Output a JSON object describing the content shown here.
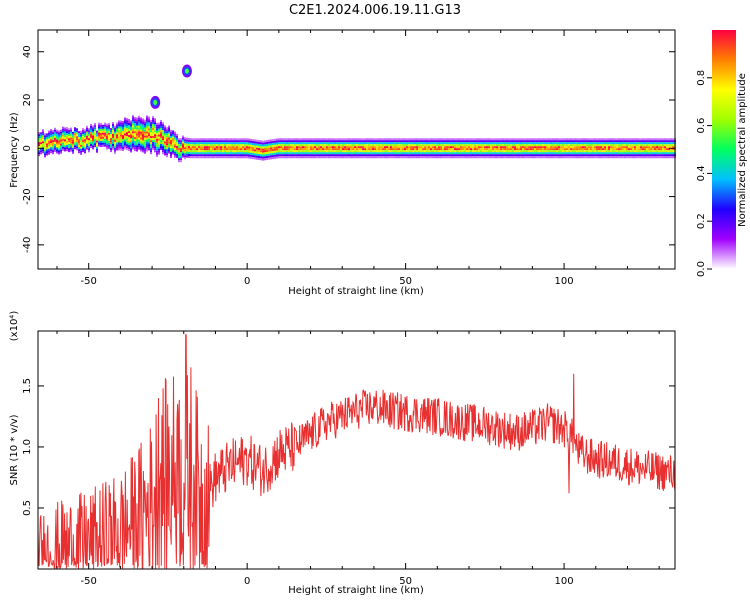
{
  "title": "C2E1.2024.006.19.11.G13",
  "chart_data": [
    {
      "type": "heatmap",
      "xlabel": "Height of straight line (km)",
      "ylabel": "Frequency (Hz)",
      "xlim": [
        -66,
        135
      ],
      "ylim": [
        -50,
        49
      ],
      "xticks": [
        -50,
        0,
        50,
        100
      ],
      "yticks": [
        -40,
        -20,
        0,
        20,
        40
      ],
      "xtick_labels": [
        "-50",
        "0",
        "50",
        "100"
      ],
      "ytick_labels": [
        "-40",
        "-20",
        "0",
        "20",
        "40"
      ],
      "colorbar": {
        "label": "Normalized spectral amplitude",
        "range": [
          0,
          1
        ],
        "ticks": [
          0.0,
          0.2,
          0.4,
          0.6,
          0.8
        ],
        "tick_labels": [
          "0.0",
          "0.2",
          "0.4",
          "0.6",
          "0.8"
        ],
        "colormap": [
          "#ffffff",
          "#a000ff",
          "#2000ff",
          "#00c0ff",
          "#00ff60",
          "#a0ff00",
          "#ffff00",
          "#ff8000",
          "#ff0040"
        ]
      },
      "ridge": {
        "height_km": [
          -66,
          -60,
          -55,
          -50,
          -45,
          -40,
          -35,
          -30,
          -25,
          -22,
          -18,
          -15,
          -10,
          -5,
          0,
          5,
          10,
          20,
          40,
          60,
          80,
          100,
          120,
          135
        ],
        "center_hz": [
          1,
          2,
          3,
          4,
          4,
          5,
          6,
          5,
          3,
          0,
          0,
          0,
          0,
          0,
          0,
          -1,
          0,
          0,
          0,
          0,
          0,
          0,
          0,
          0
        ],
        "half_width_hz": [
          4,
          4,
          4,
          4,
          4,
          5,
          6,
          6,
          5,
          4,
          3,
          3,
          3,
          3,
          3,
          3,
          3,
          3,
          3,
          3,
          3,
          3,
          3,
          3
        ]
      },
      "blobs": [
        {
          "x": -19,
          "y": 32
        },
        {
          "x": -29,
          "y": 19
        }
      ]
    },
    {
      "type": "line",
      "xlabel": "Height of straight line (km)",
      "ylabel": "SNR (10 * v/v)",
      "y_multiplier_label": "(x10⁴)",
      "xlim": [
        -66,
        135
      ],
      "ylim": [
        0,
        1.95
      ],
      "xticks": [
        -50,
        0,
        50,
        100
      ],
      "yticks": [
        0.5,
        1.0,
        1.5
      ],
      "xtick_labels": [
        "-50",
        "0",
        "50",
        "100"
      ],
      "ytick_labels": [
        "0.5",
        "1.0",
        "1.5"
      ],
      "color": "#e83030",
      "x": [
        -66,
        -60,
        -55,
        -50,
        -45,
        -40,
        -35,
        -30,
        -28,
        -25,
        -22,
        -20,
        -18,
        -15,
        -12,
        -10,
        -5,
        0,
        5,
        10,
        15,
        20,
        25,
        30,
        35,
        40,
        45,
        50,
        55,
        60,
        65,
        70,
        75,
        80,
        85,
        90,
        95,
        100,
        102,
        105,
        110,
        115,
        120,
        125,
        130,
        135
      ],
      "y": [
        0.1,
        0.15,
        0.18,
        0.2,
        0.25,
        0.3,
        0.4,
        0.55,
        0.7,
        0.75,
        0.8,
        0.7,
        0.85,
        0.6,
        0.65,
        0.75,
        0.85,
        0.9,
        0.8,
        0.95,
        1.0,
        1.1,
        1.2,
        1.25,
        1.3,
        1.33,
        1.3,
        1.28,
        1.27,
        1.25,
        1.22,
        1.2,
        1.18,
        1.15,
        1.12,
        1.15,
        1.2,
        1.15,
        1.1,
        0.95,
        0.9,
        0.88,
        0.85,
        0.82,
        0.8,
        0.78
      ],
      "spikes": [
        {
          "x": -19.3,
          "y": 1.92
        },
        {
          "x": -28,
          "y": 1.4
        },
        {
          "x": -22,
          "y": 1.35
        },
        {
          "x": 103,
          "y": 1.6
        },
        {
          "x": 101.5,
          "y": 0.62
        }
      ]
    }
  ]
}
